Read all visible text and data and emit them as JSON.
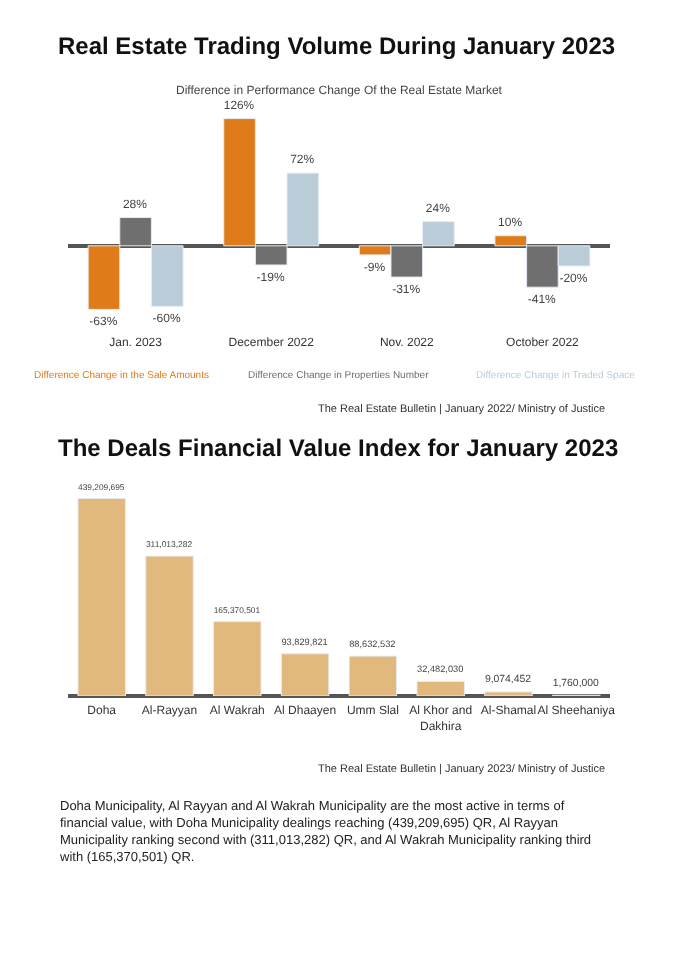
{
  "chart_data": [
    {
      "type": "bar",
      "title": "Real Estate Trading Volume During January 2023",
      "subtitle": "Difference in Performance Change Of the Real Estate Market",
      "categories": [
        "Jan. 2023",
        "December 2022",
        "Nov. 2022",
        "October 2022"
      ],
      "series": [
        {
          "name": "Difference Change in the Sale Amounts",
          "color": "#e07b1a",
          "values": [
            -63,
            126,
            -9,
            10
          ],
          "value_labels": [
            "-63%",
            "126%",
            "-9%",
            "10%"
          ]
        },
        {
          "name": "Difference Change in Properties Number",
          "color": "#6f6f6f",
          "values": [
            28,
            -19,
            -31,
            -41
          ],
          "value_labels": [
            "28%",
            "-19%",
            "-31%",
            "-41%"
          ]
        },
        {
          "name": "Difference Change in Traded Space",
          "color": "#b9ccd8",
          "values": [
            -60,
            72,
            24,
            -20
          ],
          "value_labels": [
            "-60%",
            "72%",
            "24%",
            "-20%"
          ]
        }
      ],
      "legend": "bottom",
      "annotations": [
        "The Real Estate Bulletin | January 2022/ Ministry of Justice"
      ]
    },
    {
      "type": "bar",
      "title": "The Deals Financial Value Index for January 2023",
      "categories": [
        "Doha",
        "Al-Rayyan",
        "Al Wakrah",
        "Al Dhaayen",
        "Umm Slal",
        "Al Khor and Dakhira",
        "Al-Shamal",
        "Al Sheehaniya"
      ],
      "values": [
        439209695,
        311013282,
        165370501,
        93829821,
        88632532,
        32482030,
        9074452,
        1760000
      ],
      "value_labels": [
        "439,209,695",
        "311,013,282",
        "165,370,501",
        "93,829,821",
        "88,632,532",
        "32,482,030",
        "9,074,452",
        "1,760,000"
      ],
      "color": "#e2b97c",
      "annotations": [
        "The Real Estate Bulletin | January 2023/ Ministry of Justice",
        "Doha Municipality, Al Rayyan and Al Wakrah Municipality are the most active in terms of financial value, with Doha Municipality dealings reaching (439,209,695) QR, Al Rayyan Municipality ranking second with (311,013,282) QR, and Al Wakrah Municipality ranking third with (165,370,501) QR."
      ]
    }
  ]
}
